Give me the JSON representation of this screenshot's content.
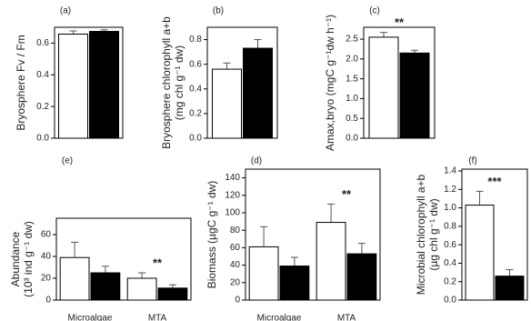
{
  "chart_data": [
    {
      "type": "bar",
      "label": "(a)",
      "ylabel": [
        "Bryosphere Fv / Fm"
      ],
      "categories": [
        null
      ],
      "series": [
        {
          "color": "#ffffff",
          "values": [
            0.657
          ],
          "errors": [
            0.02
          ]
        },
        {
          "color": "#000000",
          "values": [
            0.674
          ],
          "errors": [
            0.01
          ]
        }
      ],
      "ylim": [
        0,
        0.7
      ],
      "yticks": [
        {
          "value": 0,
          "label": "0.0"
        },
        0.2,
        0.4,
        0.6
      ]
    },
    {
      "type": "bar",
      "label": "(b)",
      "ylabel": [
        "Bryosphere chlorophyll a+b",
        "(mg chl g⁻¹ dw)"
      ],
      "categories": [
        null
      ],
      "series": [
        {
          "color": "#ffffff",
          "values": [
            0.56
          ],
          "errors": [
            0.05
          ]
        },
        {
          "color": "#000000",
          "values": [
            0.73
          ],
          "errors": [
            0.07
          ]
        }
      ],
      "ylim": [
        0,
        0.9
      ],
      "yticks": [
        {
          "value": 0,
          "label": "0.0"
        },
        0.2,
        0.4,
        0.6,
        0.8
      ]
    },
    {
      "type": "bar",
      "label": "(c)",
      "ylabel": [
        "Amax,bryo (mgC g⁻¹dw h⁻¹)"
      ],
      "categories": [
        null
      ],
      "annotation": "**",
      "series": [
        {
          "color": "#ffffff",
          "values": [
            2.55
          ],
          "errors": [
            0.12
          ]
        },
        {
          "color": "#000000",
          "values": [
            2.15
          ],
          "errors": [
            0.07
          ]
        }
      ],
      "ylim": [
        0,
        2.8
      ],
      "yticks": [
        {
          "value": 0,
          "label": "0.0"
        },
        0.5,
        {
          "value": 1,
          "label": "1.0"
        },
        1.5,
        {
          "value": 2,
          "label": "2.0"
        },
        2.5
      ]
    },
    {
      "type": "bar",
      "label": "(e)",
      "ylabel": [
        "Abundance",
        "(10³ ind g⁻¹ dw)"
      ],
      "categories": [
        "Microalgae",
        "MTA"
      ],
      "annotation": "**",
      "series": [
        {
          "color": "#ffffff",
          "values": [
            39,
            20
          ],
          "errors": [
            14,
            5
          ]
        },
        {
          "color": "#000000",
          "values": [
            25,
            11
          ],
          "errors": [
            6,
            3
          ]
        }
      ],
      "ylim": [
        0,
        75
      ],
      "yticks": [
        0,
        20,
        40,
        60
      ]
    },
    {
      "type": "bar",
      "label": "(d)",
      "ylabel": [
        "Biomass (µgC g⁻¹ dw)"
      ],
      "categories": [
        "Microalgae",
        "MTA"
      ],
      "annotation": "**",
      "series": [
        {
          "color": "#ffffff",
          "values": [
            61,
            89
          ],
          "errors": [
            23,
            21
          ]
        },
        {
          "color": "#000000",
          "values": [
            39,
            53
          ],
          "errors": [
            10,
            12
          ]
        }
      ],
      "ylim": [
        0,
        150
      ],
      "yticks": [
        0,
        20,
        40,
        60,
        80,
        100,
        120,
        140
      ]
    },
    {
      "type": "bar",
      "label": "(f)",
      "ylabel": [
        "Microbial chlorophyll a+b",
        "(µg chl g⁻¹ dw)"
      ],
      "categories": [
        null
      ],
      "annotation": "***",
      "series": [
        {
          "color": "#ffffff",
          "values": [
            1.03
          ],
          "errors": [
            0.15
          ]
        },
        {
          "color": "#000000",
          "values": [
            0.26
          ],
          "errors": [
            0.07
          ]
        }
      ],
      "ylim": [
        0,
        1.42
      ],
      "yticks": [
        {
          "value": 0,
          "label": "0.0"
        },
        0.2,
        0.4,
        0.6,
        0.8,
        {
          "value": 1,
          "label": "1.0"
        },
        1.2,
        1.4
      ]
    }
  ]
}
